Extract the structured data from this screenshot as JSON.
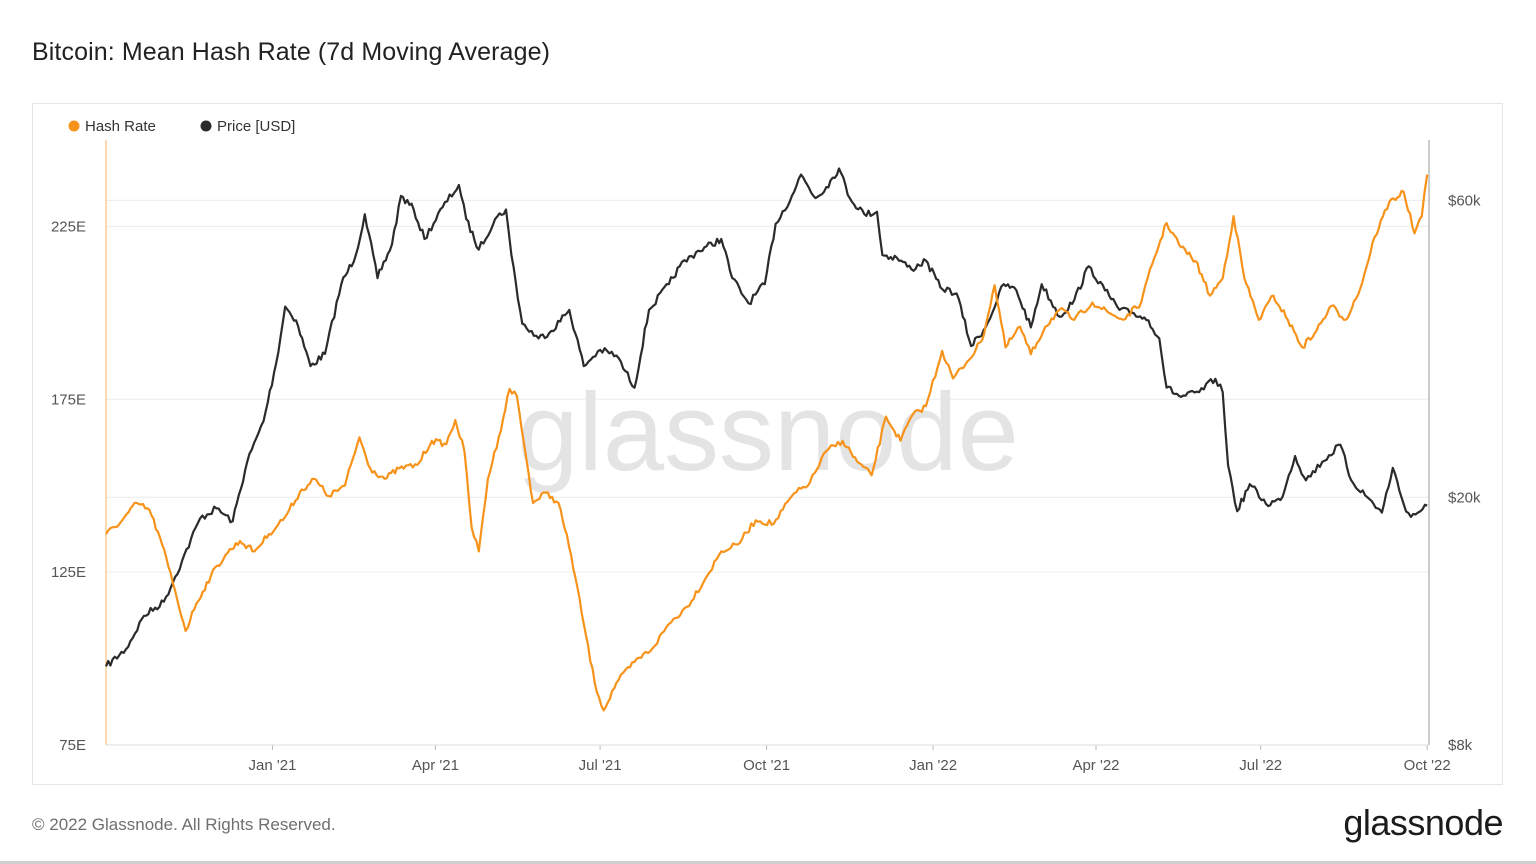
{
  "title": "Bitcoin: Mean Hash Rate (7d Moving Average)",
  "footer": {
    "copyright": "© 2022 Glassnode. All Rights Reserved.",
    "brand": "glassnode"
  },
  "watermark": "glassnode",
  "colors": {
    "hash_rate": "#f7931a",
    "price": "#2b2b2b",
    "grid": "#ececec"
  },
  "chart_data": {
    "type": "line",
    "title": "Bitcoin: Mean Hash Rate (7d Moving Average)",
    "legend_position": "top-left",
    "grid": true,
    "x_range": [
      "2020-10-01",
      "2022-10-02"
    ],
    "x_ticks": [
      {
        "date": "2021-01-01",
        "label": "Jan '21"
      },
      {
        "date": "2021-04-01",
        "label": "Apr '21"
      },
      {
        "date": "2021-07-01",
        "label": "Jul '21"
      },
      {
        "date": "2021-10-01",
        "label": "Oct '21"
      },
      {
        "date": "2022-01-01",
        "label": "Jan '22"
      },
      {
        "date": "2022-04-01",
        "label": "Apr '22"
      },
      {
        "date": "2022-07-01",
        "label": "Jul '22"
      },
      {
        "date": "2022-10-01",
        "label": "Oct '22"
      }
    ],
    "y_left": {
      "unit": "E",
      "range": [
        75,
        250
      ],
      "ticks": [
        {
          "value": 75,
          "label": "75E"
        },
        {
          "value": 125,
          "label": "125E"
        },
        {
          "value": 175,
          "label": "175E"
        },
        {
          "value": 225,
          "label": "225E"
        }
      ]
    },
    "y_right": {
      "scale": "log",
      "range": [
        8000,
        75000
      ],
      "ticks": [
        {
          "value": 8000,
          "label": "$8k"
        },
        {
          "value": 20000,
          "label": "$20k"
        },
        {
          "value": 60000,
          "label": "$60k"
        }
      ]
    },
    "series": [
      {
        "name": "Hash Rate",
        "axis": "left",
        "color": "#f7931a",
        "points": [
          [
            "2020-10-01",
            136
          ],
          [
            "2020-10-10",
            140
          ],
          [
            "2020-10-18",
            145
          ],
          [
            "2020-10-25",
            143
          ],
          [
            "2020-11-01",
            133
          ],
          [
            "2020-11-08",
            120
          ],
          [
            "2020-11-14",
            108
          ],
          [
            "2020-11-20",
            116
          ],
          [
            "2020-11-28",
            124
          ],
          [
            "2020-12-06",
            130
          ],
          [
            "2020-12-14",
            134
          ],
          [
            "2020-12-22",
            131
          ],
          [
            "2020-12-30",
            136
          ],
          [
            "2021-01-08",
            141
          ],
          [
            "2021-01-16",
            148
          ],
          [
            "2021-01-24",
            152
          ],
          [
            "2021-02-01",
            147
          ],
          [
            "2021-02-10",
            150
          ],
          [
            "2021-02-18",
            164
          ],
          [
            "2021-02-24",
            155
          ],
          [
            "2021-03-04",
            152
          ],
          [
            "2021-03-12",
            155
          ],
          [
            "2021-03-22",
            156
          ],
          [
            "2021-03-30",
            163
          ],
          [
            "2021-04-07",
            162
          ],
          [
            "2021-04-12",
            169
          ],
          [
            "2021-04-17",
            160
          ],
          [
            "2021-04-21",
            138
          ],
          [
            "2021-04-25",
            131
          ],
          [
            "2021-04-30",
            152
          ],
          [
            "2021-05-06",
            164
          ],
          [
            "2021-05-12",
            178
          ],
          [
            "2021-05-16",
            176
          ],
          [
            "2021-05-20",
            162
          ],
          [
            "2021-05-25",
            145
          ],
          [
            "2021-06-01",
            148
          ],
          [
            "2021-06-08",
            145
          ],
          [
            "2021-06-15",
            130
          ],
          [
            "2021-06-22",
            110
          ],
          [
            "2021-06-28",
            93
          ],
          [
            "2021-07-03",
            85
          ],
          [
            "2021-07-10",
            93
          ],
          [
            "2021-07-20",
            99
          ],
          [
            "2021-07-30",
            103
          ],
          [
            "2021-08-08",
            110
          ],
          [
            "2021-08-18",
            115
          ],
          [
            "2021-08-28",
            123
          ],
          [
            "2021-09-06",
            131
          ],
          [
            "2021-09-15",
            133
          ],
          [
            "2021-09-25",
            140
          ],
          [
            "2021-10-05",
            139
          ],
          [
            "2021-10-15",
            147
          ],
          [
            "2021-10-25",
            151
          ],
          [
            "2021-11-03",
            160
          ],
          [
            "2021-11-12",
            163
          ],
          [
            "2021-11-20",
            157
          ],
          [
            "2021-11-28",
            153
          ],
          [
            "2021-12-06",
            170
          ],
          [
            "2021-12-14",
            163
          ],
          [
            "2021-12-20",
            170
          ],
          [
            "2021-12-28",
            173
          ],
          [
            "2022-01-06",
            189
          ],
          [
            "2022-01-12",
            181
          ],
          [
            "2022-01-20",
            186
          ],
          [
            "2022-01-28",
            192
          ],
          [
            "2022-02-04",
            208
          ],
          [
            "2022-02-10",
            190
          ],
          [
            "2022-02-18",
            196
          ],
          [
            "2022-02-24",
            188
          ],
          [
            "2022-03-04",
            196
          ],
          [
            "2022-03-12",
            201
          ],
          [
            "2022-03-20",
            198
          ],
          [
            "2022-03-30",
            203
          ],
          [
            "2022-04-08",
            200
          ],
          [
            "2022-04-16",
            198
          ],
          [
            "2022-04-26",
            203
          ],
          [
            "2022-05-02",
            214
          ],
          [
            "2022-05-10",
            226
          ],
          [
            "2022-05-18",
            219
          ],
          [
            "2022-05-26",
            215
          ],
          [
            "2022-06-03",
            205
          ],
          [
            "2022-06-10",
            210
          ],
          [
            "2022-06-16",
            228
          ],
          [
            "2022-06-22",
            210
          ],
          [
            "2022-06-30",
            198
          ],
          [
            "2022-07-08",
            205
          ],
          [
            "2022-07-16",
            198
          ],
          [
            "2022-07-24",
            190
          ],
          [
            "2022-08-01",
            195
          ],
          [
            "2022-08-09",
            202
          ],
          [
            "2022-08-17",
            198
          ],
          [
            "2022-08-25",
            207
          ],
          [
            "2022-09-02",
            222
          ],
          [
            "2022-09-10",
            232
          ],
          [
            "2022-09-18",
            235
          ],
          [
            "2022-09-24",
            223
          ],
          [
            "2022-09-28",
            228
          ],
          [
            "2022-10-01",
            240
          ]
        ]
      },
      {
        "name": "Price [USD]",
        "axis": "right",
        "color": "#2b2b2b",
        "points": [
          [
            "2020-10-01",
            10700
          ],
          [
            "2020-10-12",
            11400
          ],
          [
            "2020-10-22",
            12900
          ],
          [
            "2020-11-02",
            13600
          ],
          [
            "2020-11-12",
            15800
          ],
          [
            "2020-11-22",
            18500
          ],
          [
            "2020-12-01",
            19200
          ],
          [
            "2020-12-10",
            18300
          ],
          [
            "2020-12-18",
            22800
          ],
          [
            "2020-12-27",
            26500
          ],
          [
            "2021-01-03",
            32800
          ],
          [
            "2021-01-08",
            40500
          ],
          [
            "2021-01-14",
            38500
          ],
          [
            "2021-01-22",
            32500
          ],
          [
            "2021-01-30",
            34000
          ],
          [
            "2021-02-08",
            44000
          ],
          [
            "2021-02-16",
            49000
          ],
          [
            "2021-02-21",
            57000
          ],
          [
            "2021-02-28",
            45000
          ],
          [
            "2021-03-08",
            51000
          ],
          [
            "2021-03-13",
            61000
          ],
          [
            "2021-03-20",
            58000
          ],
          [
            "2021-03-26",
            52000
          ],
          [
            "2021-04-05",
            58500
          ],
          [
            "2021-04-14",
            63500
          ],
          [
            "2021-04-18",
            56000
          ],
          [
            "2021-04-25",
            50000
          ],
          [
            "2021-05-04",
            56000
          ],
          [
            "2021-05-10",
            58000
          ],
          [
            "2021-05-13",
            49000
          ],
          [
            "2021-05-19",
            38000
          ],
          [
            "2021-05-28",
            36000
          ],
          [
            "2021-06-04",
            37000
          ],
          [
            "2021-06-14",
            40000
          ],
          [
            "2021-06-22",
            32500
          ],
          [
            "2021-07-01",
            34500
          ],
          [
            "2021-07-10",
            33800
          ],
          [
            "2021-07-20",
            30000
          ],
          [
            "2021-07-28",
            40000
          ],
          [
            "2021-08-08",
            44000
          ],
          [
            "2021-08-14",
            47000
          ],
          [
            "2021-08-23",
            49500
          ],
          [
            "2021-09-06",
            52000
          ],
          [
            "2021-09-12",
            45000
          ],
          [
            "2021-09-21",
            41000
          ],
          [
            "2021-09-30",
            44000
          ],
          [
            "2021-10-06",
            55000
          ],
          [
            "2021-10-15",
            61000
          ],
          [
            "2021-10-20",
            66000
          ],
          [
            "2021-10-28",
            60500
          ],
          [
            "2021-11-03",
            63000
          ],
          [
            "2021-11-10",
            67500
          ],
          [
            "2021-11-16",
            60500
          ],
          [
            "2021-11-24",
            57000
          ],
          [
            "2021-12-01",
            57500
          ],
          [
            "2021-12-04",
            49000
          ],
          [
            "2021-12-12",
            48500
          ],
          [
            "2021-12-20",
            46500
          ],
          [
            "2021-12-28",
            48000
          ],
          [
            "2022-01-05",
            43500
          ],
          [
            "2022-01-14",
            42500
          ],
          [
            "2022-01-22",
            35000
          ],
          [
            "2022-01-30",
            37500
          ],
          [
            "2022-02-09",
            44000
          ],
          [
            "2022-02-16",
            43000
          ],
          [
            "2022-02-24",
            37500
          ],
          [
            "2022-03-02",
            44000
          ],
          [
            "2022-03-12",
            39000
          ],
          [
            "2022-03-20",
            41500
          ],
          [
            "2022-03-28",
            47000
          ],
          [
            "2022-04-06",
            43000
          ],
          [
            "2022-04-14",
            40000
          ],
          [
            "2022-04-22",
            39500
          ],
          [
            "2022-04-30",
            38500
          ],
          [
            "2022-05-06",
            36000
          ],
          [
            "2022-05-10",
            30000
          ],
          [
            "2022-05-18",
            29000
          ],
          [
            "2022-05-28",
            29500
          ],
          [
            "2022-06-06",
            31000
          ],
          [
            "2022-06-10",
            29500
          ],
          [
            "2022-06-13",
            22500
          ],
          [
            "2022-06-18",
            19000
          ],
          [
            "2022-06-25",
            21000
          ],
          [
            "2022-07-04",
            19500
          ],
          [
            "2022-07-12",
            19800
          ],
          [
            "2022-07-20",
            23300
          ],
          [
            "2022-07-26",
            21300
          ],
          [
            "2022-08-04",
            22800
          ],
          [
            "2022-08-14",
            24300
          ],
          [
            "2022-08-20",
            21300
          ],
          [
            "2022-08-29",
            20000
          ],
          [
            "2022-09-06",
            18900
          ],
          [
            "2022-09-12",
            22300
          ],
          [
            "2022-09-18",
            19500
          ],
          [
            "2022-09-22",
            18600
          ],
          [
            "2022-10-01",
            19400
          ]
        ]
      }
    ]
  }
}
